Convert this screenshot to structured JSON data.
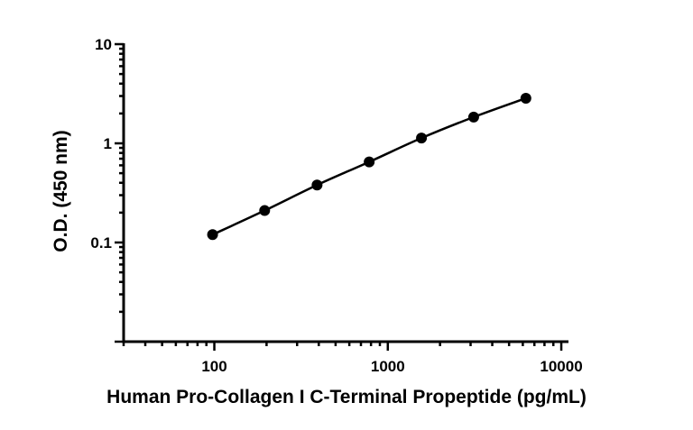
{
  "chart_data": {
    "type": "scatter",
    "title": "",
    "xlabel": "Human Pro-Collagen I C-Terminal Propeptide (pg/mL)",
    "ylabel": "O.D. (450 nm)",
    "x_scale": "log",
    "y_scale": "log",
    "xlim": [
      30,
      11000
    ],
    "ylim": [
      0.01,
      10
    ],
    "x_ticks": [
      100,
      1000,
      10000
    ],
    "x_tick_labels": [
      "100",
      "1000",
      "10000"
    ],
    "y_ticks": [
      0.1,
      1,
      10
    ],
    "y_tick_labels": [
      "0.1",
      "1",
      "10"
    ],
    "grid": false,
    "legend": "none",
    "series": [
      {
        "x": [
          97.7,
          195,
          391,
          781,
          1563,
          3125,
          6250
        ],
        "y": [
          0.12,
          0.21,
          0.38,
          0.65,
          1.13,
          1.84,
          2.85
        ]
      }
    ]
  }
}
